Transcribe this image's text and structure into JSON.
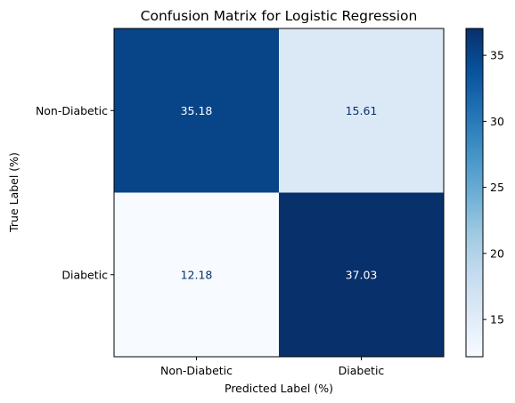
{
  "chart_data": {
    "type": "heatmap",
    "title": "Confusion Matrix for Logistic Regression",
    "xlabel": "Predicted Label (%)",
    "ylabel": "True Label (%)",
    "x_categories": [
      "Non-Diabetic",
      "Diabetic"
    ],
    "y_categories": [
      "Non-Diabetic",
      "Diabetic"
    ],
    "values": [
      [
        35.18,
        15.61
      ],
      [
        12.18,
        37.03
      ]
    ],
    "cell_labels": [
      [
        "35.18",
        "15.61"
      ],
      [
        "12.18",
        "37.03"
      ]
    ],
    "colormap": "Blues",
    "colorbar": {
      "min": 12.18,
      "max": 37.03,
      "ticks": [
        15,
        20,
        25,
        30,
        35
      ],
      "tick_labels": [
        "15",
        "20",
        "25",
        "30",
        "35"
      ]
    },
    "grid": false
  }
}
